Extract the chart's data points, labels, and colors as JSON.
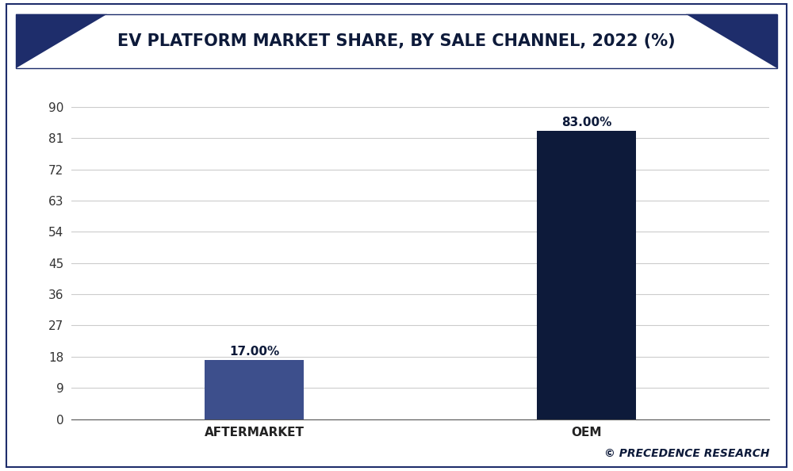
{
  "title": "EV PLATFORM MARKET SHARE, BY SALE CHANNEL, 2022 (%)",
  "categories": [
    "AFTERMARKET",
    "OEM"
  ],
  "values": [
    17.0,
    83.0
  ],
  "bar_labels": [
    "17.00%",
    "83.00%"
  ],
  "bar_colors": [
    "#3d4f8c",
    "#0d1a3a"
  ],
  "background_color": "#ffffff",
  "plot_bg_color": "#ffffff",
  "title_color": "#0d1a3a",
  "yticks": [
    0,
    9,
    18,
    27,
    36,
    45,
    54,
    63,
    72,
    81,
    90
  ],
  "ylim": [
    0,
    95
  ],
  "grid_color": "#cccccc",
  "watermark": "© PRECEDENCE RESEARCH",
  "title_fontsize": 15,
  "tick_fontsize": 11,
  "bar_label_fontsize": 11,
  "watermark_fontsize": 10,
  "header_bg_color": "#ffffff",
  "header_tri_color": "#1e2d6b",
  "border_color": "#1e2d6b"
}
